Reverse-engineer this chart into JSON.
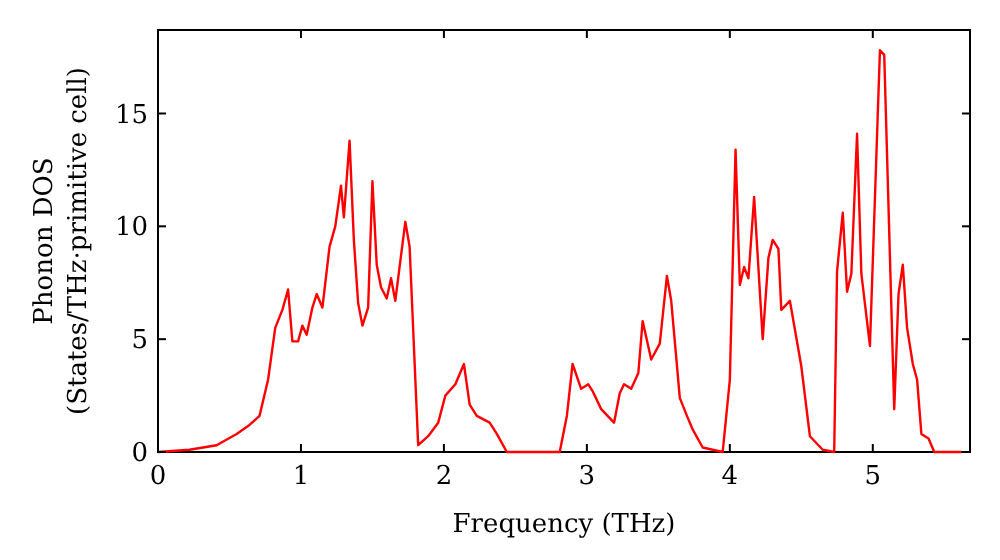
{
  "chart_data": {
    "type": "line",
    "xlabel": "Frequency (THz)",
    "ylabel": "Phonon DOS\n(States/THz·primitive cell)",
    "xlim": [
      0,
      5.68
    ],
    "ylim": [
      0,
      18.7
    ],
    "xticks": [
      0,
      1,
      2,
      3,
      4,
      5
    ],
    "yticks": [
      0,
      5,
      10,
      15
    ],
    "grid": false,
    "marker": "none",
    "line_style": "solid",
    "series": [
      {
        "color": "#ff0000",
        "x": [
          0,
          0.22,
          0.41,
          0.55,
          0.64,
          0.71,
          0.77,
          0.82,
          0.87,
          0.91,
          0.94,
          0.98,
          1.01,
          1.04,
          1.08,
          1.11,
          1.15,
          1.2,
          1.24,
          1.28,
          1.3,
          1.34,
          1.37,
          1.4,
          1.43,
          1.47,
          1.5,
          1.53,
          1.56,
          1.6,
          1.63,
          1.66,
          1.69,
          1.73,
          1.76,
          1.82,
          1.89,
          1.96,
          2.01,
          2.08,
          2.14,
          2.18,
          2.23,
          2.32,
          2.37,
          2.44,
          2.81,
          2.86,
          2.9,
          2.96,
          3.01,
          3.04,
          3.1,
          3.19,
          3.23,
          3.26,
          3.31,
          3.36,
          3.39,
          3.45,
          3.51,
          3.56,
          3.59,
          3.65,
          3.7,
          3.74,
          3.81,
          3.95,
          4.0,
          4.04,
          4.07,
          4.1,
          4.13,
          4.17,
          4.23,
          4.27,
          4.3,
          4.34,
          4.36,
          4.42,
          4.5,
          4.56,
          4.65,
          4.73,
          4.75,
          4.79,
          4.82,
          4.85,
          4.89,
          4.92,
          4.98,
          5.05,
          5.08,
          5.15,
          5.18,
          5.21,
          5.24,
          5.28,
          5.31,
          5.34,
          5.39,
          5.43,
          5.62
        ],
        "values": [
          0,
          0.1,
          0.3,
          0.8,
          1.2,
          1.6,
          3.2,
          5.5,
          6.3,
          7.2,
          4.9,
          4.9,
          5.6,
          5.2,
          6.4,
          7.0,
          6.4,
          9.1,
          10.0,
          11.8,
          10.4,
          13.8,
          9.4,
          6.6,
          5.6,
          6.4,
          12.0,
          8.3,
          7.3,
          6.8,
          7.7,
          6.7,
          8.2,
          10.2,
          9.1,
          0.3,
          0.7,
          1.3,
          2.5,
          3.0,
          3.9,
          2.1,
          1.6,
          1.3,
          0.8,
          0,
          0,
          1.6,
          3.9,
          2.8,
          3.0,
          2.7,
          1.9,
          1.3,
          2.6,
          3.0,
          2.8,
          3.5,
          5.8,
          4.1,
          4.8,
          7.8,
          6.7,
          2.4,
          1.6,
          1.0,
          0.2,
          0,
          3.2,
          13.4,
          7.4,
          8.2,
          7.7,
          11.3,
          5.0,
          8.6,
          9.4,
          9.0,
          6.3,
          6.7,
          3.8,
          0.7,
          0.1,
          0,
          8.0,
          10.6,
          7.1,
          7.9,
          14.1,
          7.9,
          4.7,
          17.8,
          17.6,
          1.9,
          7.0,
          8.3,
          5.5,
          3.9,
          3.2,
          0.8,
          0.6,
          0,
          0
        ]
      }
    ]
  }
}
